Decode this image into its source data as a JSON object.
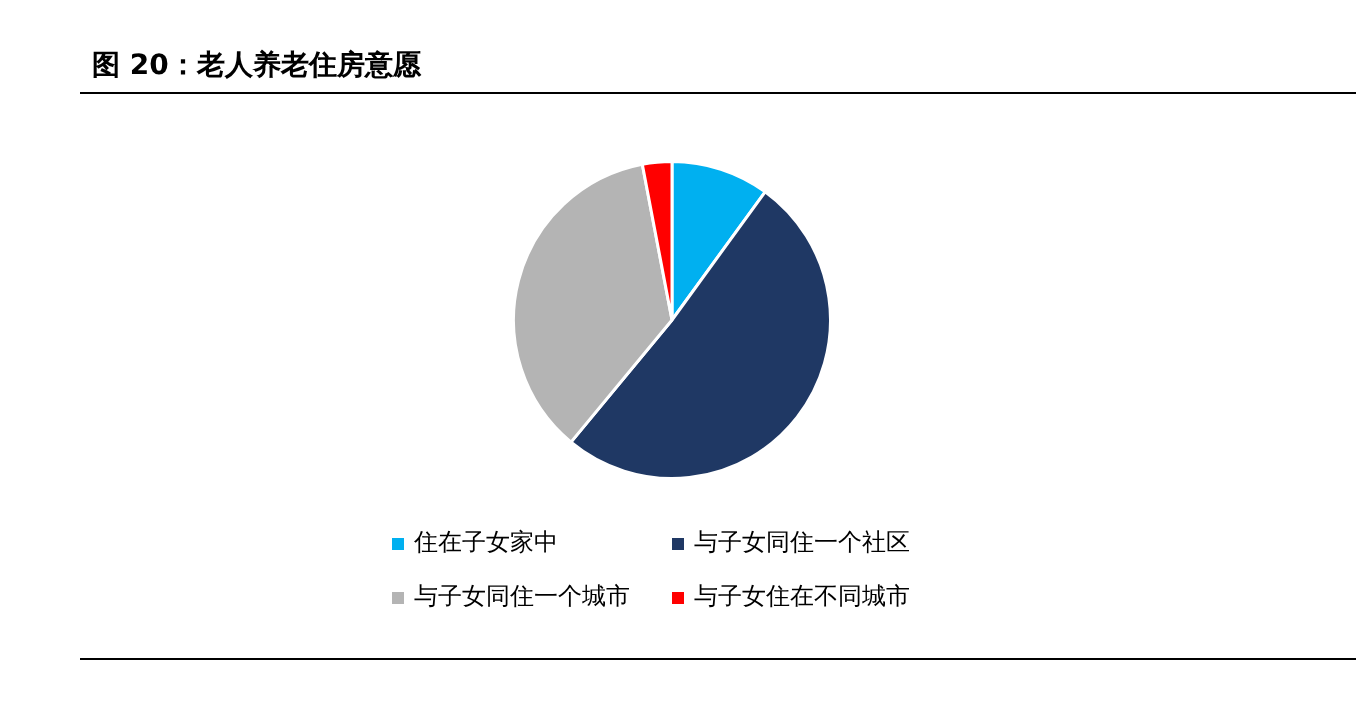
{
  "chart_data": {
    "type": "pie",
    "title": "图 20：老人养老住房意愿",
    "categories": [
      "住在子女家中",
      "与子女同住一个社区",
      "与子女同住一个城市",
      "与子女住在不同城市"
    ],
    "values": [
      10,
      51,
      36,
      3
    ],
    "colors": [
      "#00b0f0",
      "#1f3864",
      "#b4b4b4",
      "#ff0000"
    ],
    "legend": "bottom"
  }
}
